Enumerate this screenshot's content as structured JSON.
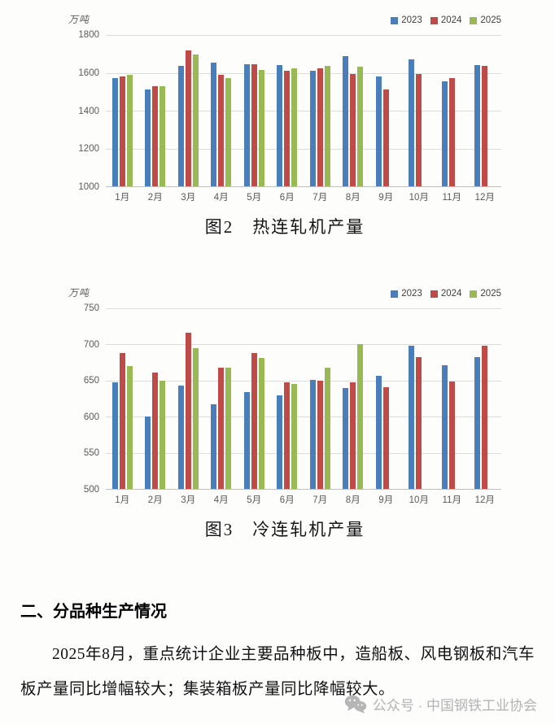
{
  "chart_data": [
    {
      "type": "bar",
      "title": "图2　热连轧机产量",
      "unit": "万吨",
      "categories": [
        "1月",
        "2月",
        "3月",
        "4月",
        "5月",
        "6月",
        "7月",
        "8月",
        "9月",
        "10月",
        "11月",
        "12月"
      ],
      "series": [
        {
          "name": "2023",
          "color": "#4A7EBB",
          "values": [
            1570,
            1510,
            1635,
            1653,
            1644,
            1640,
            1612,
            1688,
            1582,
            1672,
            1555,
            1640
          ]
        },
        {
          "name": "2024",
          "color": "#BE4B48",
          "values": [
            1580,
            1530,
            1720,
            1591,
            1645,
            1611,
            1623,
            1593,
            1514,
            1595,
            1574,
            1637
          ]
        },
        {
          "name": "2025",
          "color": "#98B954",
          "values": [
            1589,
            1531,
            1696,
            1570,
            1615,
            1624,
            1637,
            1633,
            null,
            null,
            null,
            null
          ]
        }
      ],
      "ylim": [
        1000,
        1800
      ],
      "yticks": [
        1000,
        1200,
        1400,
        1600,
        1800
      ],
      "grid": true,
      "legend_position": "top-right"
    },
    {
      "type": "bar",
      "title": "图3　冷连轧机产量",
      "unit": "万吨",
      "categories": [
        "1月",
        "2月",
        "3月",
        "4月",
        "5月",
        "6月",
        "7月",
        "8月",
        "9月",
        "10月",
        "11月",
        "12月"
      ],
      "series": [
        {
          "name": "2023",
          "color": "#4A7EBB",
          "values": [
            648,
            600,
            643,
            617,
            634,
            629,
            651,
            640,
            657,
            698,
            671,
            683
          ]
        },
        {
          "name": "2024",
          "color": "#BE4B48",
          "values": [
            688,
            661,
            716,
            668,
            688,
            648,
            650,
            647,
            641,
            683,
            649,
            698
          ]
        },
        {
          "name": "2025",
          "color": "#98B954",
          "values": [
            670,
            650,
            695,
            668,
            681,
            645,
            668,
            700,
            null,
            null,
            null,
            null
          ]
        }
      ],
      "ylim": [
        500,
        750
      ],
      "yticks": [
        500,
        550,
        600,
        650,
        700,
        750
      ],
      "grid": true,
      "legend_position": "top-right"
    }
  ],
  "section": {
    "heading": "二、分品种生产情况",
    "paragraph": "2025年8月，重点统计企业主要品种板中，造船板、风电钢板和汽车板产量同比增幅较大；集装箱板产量同比降幅较大。"
  },
  "footer": {
    "text": "公众号 · 中国钢铁工业协会"
  }
}
